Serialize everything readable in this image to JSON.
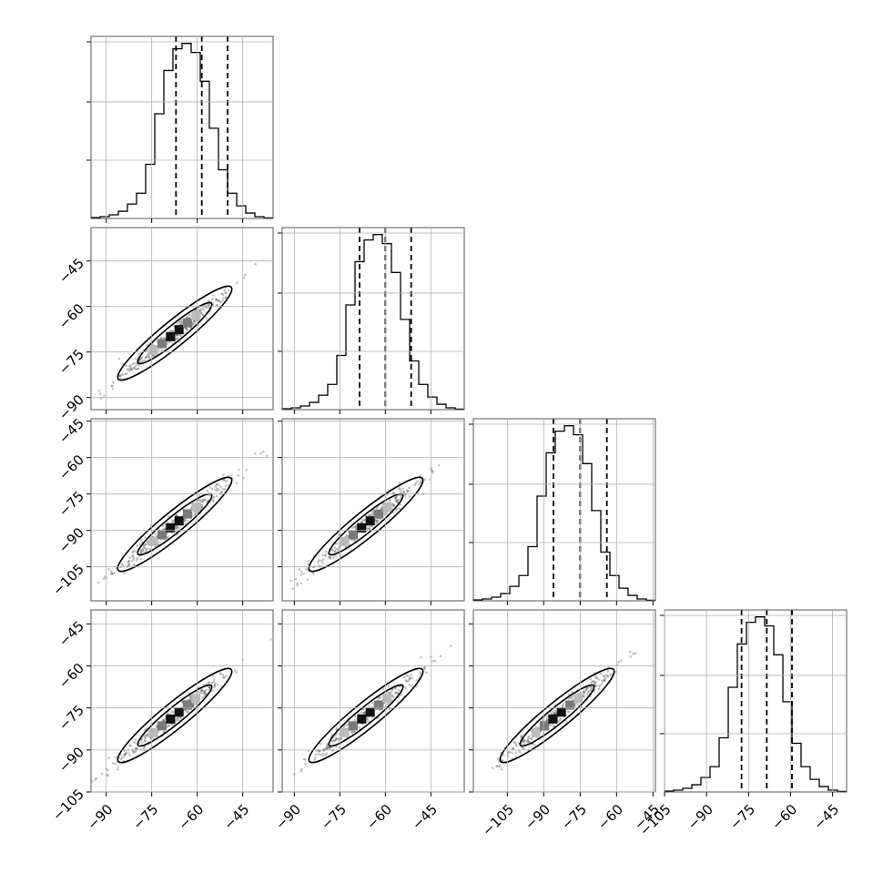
{
  "chart_data": {
    "type": "corner",
    "title": "",
    "parameters": [
      {
        "index": 0,
        "range": [
          -95,
          -35
        ],
        "ticks": [
          -90,
          -75,
          -60,
          -45
        ],
        "quantiles": [
          -67,
          -58.5,
          -50
        ]
      },
      {
        "index": 1,
        "range": [
          -94,
          -34
        ],
        "ticks": [
          -90,
          -75,
          -60,
          -45
        ],
        "quantiles": [
          -68.5,
          -60,
          -51.5
        ]
      },
      {
        "index": 2,
        "range": [
          -119,
          -44
        ],
        "ticks": [
          -105,
          -90,
          -75,
          -60,
          -45
        ],
        "quantiles": [
          -86,
          -75,
          -64
        ]
      },
      {
        "index": 3,
        "range": [
          -105,
          -40
        ],
        "ticks": [
          -105,
          -90,
          -75,
          -60,
          -45
        ],
        "quantiles": [
          -77.5,
          -68.5,
          -59.5
        ]
      }
    ],
    "histograms": [
      {
        "param": 0,
        "counts": [
          0.5,
          1,
          2,
          4,
          8,
          14,
          30,
          58,
          82,
          94,
          97,
          92,
          76,
          50,
          27,
          14,
          7,
          3,
          1,
          0.3
        ]
      },
      {
        "param": 1,
        "counts": [
          0.5,
          1,
          2,
          4,
          8,
          14,
          30,
          58,
          82,
          94,
          97,
          92,
          76,
          50,
          27,
          14,
          7,
          3,
          1,
          0.3
        ]
      },
      {
        "param": 2,
        "counts": [
          0.5,
          1,
          2,
          4,
          8,
          14,
          30,
          58,
          82,
          94,
          97,
          92,
          76,
          50,
          27,
          14,
          7,
          3,
          1,
          0.3
        ]
      },
      {
        "param": 3,
        "counts": [
          0.5,
          1,
          2,
          4,
          8,
          14,
          30,
          58,
          82,
          94,
          97,
          92,
          76,
          50,
          27,
          14,
          7,
          3,
          1,
          0.3
        ]
      }
    ],
    "grid": true,
    "tick_labels": {
      "0": [
        "−90",
        "−75",
        "−60",
        "−45"
      ],
      "1": [
        "−90",
        "−75",
        "−60",
        "−45"
      ],
      "2": [
        "−105",
        "−90",
        "−75",
        "−60",
        "−45"
      ],
      "3": [
        "−105",
        "−90",
        "−75",
        "−60",
        "−45"
      ]
    },
    "colors": {
      "line": "#000000",
      "points": "#555555",
      "grid": "#b0b0b0"
    }
  }
}
